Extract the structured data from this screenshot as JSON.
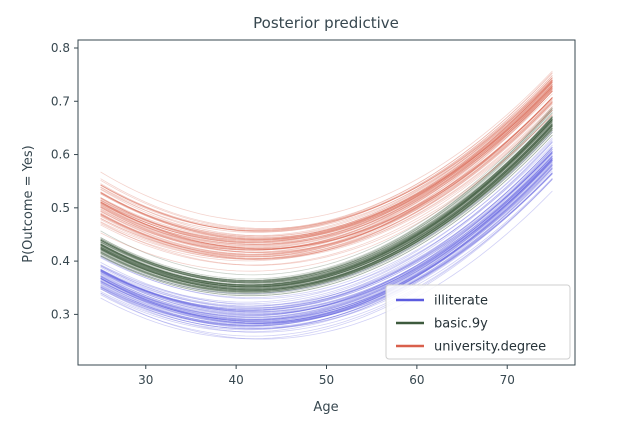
{
  "chart_data": {
    "type": "line",
    "title": "Posterior predictive",
    "xlabel": "Age",
    "ylabel": "P(Outcome = Yes)",
    "xlim": [
      22.5,
      77.5
    ],
    "ylim": [
      0.205,
      0.815
    ],
    "xticks": [
      30,
      40,
      50,
      60,
      70
    ],
    "yticks": [
      0.3,
      0.4,
      0.5,
      0.6,
      0.7,
      0.8
    ],
    "tick_labels_x": [
      "30",
      "40",
      "50",
      "60",
      "70"
    ],
    "tick_labels_y": [
      "0.3",
      "0.4",
      "0.5",
      "0.6",
      "0.7",
      "0.8"
    ],
    "legend_position": "lower-right",
    "x_range": [
      25,
      75
    ],
    "samples_per_series": 60,
    "series": [
      {
        "name": "illiterate",
        "color": "#5b5bdf",
        "mean_curve": {
          "x": [
            25,
            44,
            75
          ],
          "y": [
            0.37,
            0.29,
            0.6
          ]
        },
        "band_low": {
          "x": [
            25,
            44,
            75
          ],
          "y": [
            0.32,
            0.24,
            0.53
          ]
        },
        "band_high": {
          "x": [
            25,
            44,
            75
          ],
          "y": [
            0.43,
            0.36,
            0.66
          ]
        }
      },
      {
        "name": "basic.9y",
        "color": "#3d5a3d",
        "mean_curve": {
          "x": [
            25,
            44,
            75
          ],
          "y": [
            0.43,
            0.355,
            0.66
          ]
        },
        "band_low": {
          "x": [
            25,
            44,
            75
          ],
          "y": [
            0.4,
            0.33,
            0.63
          ]
        },
        "band_high": {
          "x": [
            25,
            44,
            75
          ],
          "y": [
            0.46,
            0.38,
            0.7
          ]
        }
      },
      {
        "name": "university.degree",
        "color": "#d9604c",
        "mean_curve": {
          "x": [
            25,
            44,
            75
          ],
          "y": [
            0.5,
            0.42,
            0.73
          ]
        },
        "band_low": {
          "x": [
            25,
            44,
            75
          ],
          "y": [
            0.44,
            0.37,
            0.66
          ]
        },
        "band_high": {
          "x": [
            25,
            44,
            75
          ],
          "y": [
            0.58,
            0.49,
            0.78
          ]
        }
      }
    ]
  }
}
